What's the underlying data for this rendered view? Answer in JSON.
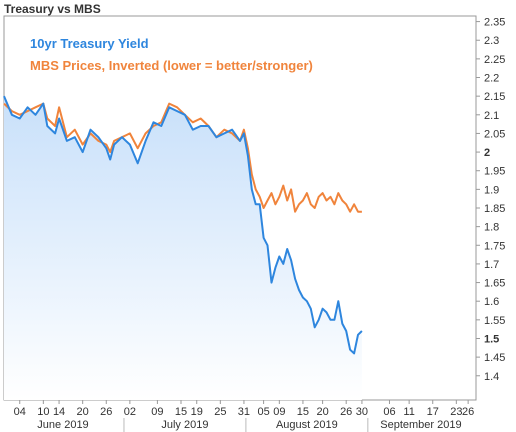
{
  "window_title": "Treasury vs MBS",
  "colors": {
    "treasury": "#2e86de",
    "mbs": "#f0843c",
    "fill_top": "#c8e0fa",
    "fill_bottom": "#ffffff",
    "axis": "#999999"
  },
  "chart_data": {
    "type": "area",
    "title": "Treasury vs MBS",
    "y_axis_side": "right",
    "ylim": [
      1.335,
      2.365
    ],
    "y_ticks": [
      "2.35",
      "2.3",
      "2.25",
      "2.2",
      "2.15",
      "2.1",
      "2.05",
      "2",
      "1.95",
      "1.9",
      "1.85",
      "1.8",
      "1.75",
      "1.7",
      "1.65",
      "1.6",
      "1.55",
      "1.5",
      "1.45",
      "1.4"
    ],
    "y_tick_values": [
      2.35,
      2.3,
      2.25,
      2.2,
      2.15,
      2.1,
      2.05,
      2.0,
      1.95,
      1.9,
      1.85,
      1.8,
      1.75,
      1.7,
      1.65,
      1.6,
      1.55,
      1.5,
      1.45,
      1.4
    ],
    "bold_ticks": [
      "2",
      "1.5"
    ],
    "x_ticks": [
      "04",
      "10",
      "14",
      "20",
      "26",
      "02",
      "09",
      "15",
      "19",
      "25",
      "31",
      "05",
      "09",
      "15",
      "20",
      "26",
      "30",
      "06",
      "11",
      "17",
      "23",
      "26"
    ],
    "x_tick_days": [
      0,
      6,
      10,
      16,
      22,
      28,
      35,
      41,
      45,
      51,
      57,
      62,
      66,
      72,
      77,
      83,
      87,
      94,
      99,
      105,
      111,
      114
    ],
    "x_range_days": [
      -4,
      116
    ],
    "months": [
      "June 2019",
      "July 2019",
      "August 2019",
      "September 2019"
    ],
    "month_divider_days": [
      26.5,
      57.5,
      88.5
    ],
    "month_label_days": [
      11,
      42,
      73,
      102
    ],
    "legend": [
      "10yr Treasury Yield",
      "MBS Prices, Inverted (lower = better/stronger)"
    ],
    "legend_position": "top-left",
    "grid": false,
    "series": [
      {
        "name": "10yr Treasury Yield",
        "color": "#2e86de",
        "area": true,
        "x": [
          -4,
          -2,
          0,
          2,
          4,
          6,
          7,
          9,
          10,
          12,
          14,
          16,
          18,
          20,
          22,
          23,
          24,
          26,
          28,
          30,
          32,
          34,
          36,
          38,
          40,
          42,
          44,
          46,
          48,
          50,
          52,
          54,
          56,
          57,
          58,
          59,
          60,
          61,
          62,
          63,
          64,
          65,
          66,
          67,
          68,
          69,
          70,
          71,
          72,
          73,
          74,
          75,
          76,
          77,
          78,
          79,
          80,
          81,
          82,
          83,
          84,
          85,
          86,
          87
        ],
        "values": [
          2.15,
          2.1,
          2.09,
          2.12,
          2.1,
          2.13,
          2.07,
          2.05,
          2.09,
          2.03,
          2.04,
          2.0,
          2.06,
          2.04,
          2.01,
          1.98,
          2.02,
          2.04,
          2.02,
          1.97,
          2.03,
          2.08,
          2.07,
          2.12,
          2.11,
          2.1,
          2.06,
          2.07,
          2.07,
          2.04,
          2.05,
          2.06,
          2.03,
          2.05,
          1.99,
          1.9,
          1.86,
          1.86,
          1.77,
          1.75,
          1.65,
          1.69,
          1.72,
          1.7,
          1.74,
          1.71,
          1.66,
          1.63,
          1.61,
          1.6,
          1.58,
          1.53,
          1.55,
          1.58,
          1.57,
          1.55,
          1.55,
          1.6,
          1.54,
          1.52,
          1.47,
          1.46,
          1.51,
          1.52
        ]
      },
      {
        "name": "MBS Prices, Inverted (lower = better/stronger)",
        "color": "#f0843c",
        "area": false,
        "x": [
          -4,
          -2,
          0,
          2,
          4,
          6,
          7,
          9,
          10,
          12,
          14,
          16,
          18,
          20,
          22,
          23,
          24,
          26,
          28,
          30,
          32,
          34,
          36,
          38,
          40,
          42,
          44,
          46,
          48,
          50,
          52,
          54,
          56,
          57,
          58,
          59,
          60,
          61,
          62,
          63,
          64,
          65,
          66,
          67,
          68,
          69,
          70,
          71,
          72,
          73,
          74,
          75,
          76,
          77,
          78,
          79,
          80,
          81,
          82,
          83,
          84,
          85,
          86,
          87
        ],
        "values": [
          2.13,
          2.11,
          2.1,
          2.11,
          2.12,
          2.13,
          2.09,
          2.07,
          2.12,
          2.04,
          2.06,
          2.02,
          2.05,
          2.03,
          2.02,
          2.0,
          2.03,
          2.04,
          2.05,
          2.01,
          2.05,
          2.07,
          2.08,
          2.13,
          2.12,
          2.1,
          2.08,
          2.09,
          2.07,
          2.04,
          2.06,
          2.05,
          2.03,
          2.06,
          2.01,
          1.94,
          1.9,
          1.88,
          1.85,
          1.87,
          1.89,
          1.86,
          1.88,
          1.91,
          1.87,
          1.9,
          1.84,
          1.86,
          1.87,
          1.89,
          1.86,
          1.85,
          1.88,
          1.89,
          1.87,
          1.88,
          1.86,
          1.89,
          1.87,
          1.86,
          1.84,
          1.86,
          1.84,
          1.84
        ]
      }
    ]
  }
}
